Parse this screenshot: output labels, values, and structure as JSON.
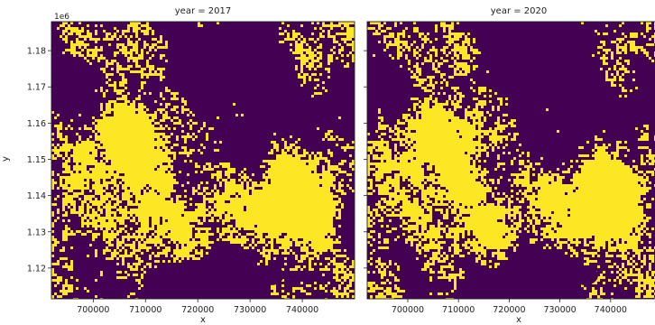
{
  "chart_data": [
    {
      "type": "heatmap",
      "title": "year = 2017",
      "xlabel": "x",
      "ylabel": "y",
      "y_offset_label": "1e6",
      "xlim": [
        692000,
        750000
      ],
      "ylim": [
        1.1115,
        1.188
      ],
      "x_ticks": [
        "700000",
        "710000",
        "720000",
        "730000",
        "740000"
      ],
      "y_ticks": [
        "1.12",
        "1.13",
        "1.14",
        "1.15",
        "1.16",
        "1.17",
        "1.18"
      ],
      "colors": {
        "low": "#440154",
        "high": "#fde725"
      },
      "grid": false
    },
    {
      "type": "heatmap",
      "title": "year = 2020",
      "xlabel": "x",
      "ylabel": "",
      "xlim": [
        692000,
        750000
      ],
      "ylim": [
        1.1115,
        1.188
      ],
      "x_ticks": [
        "700000",
        "710000",
        "720000",
        "730000",
        "740000"
      ],
      "y_ticks": [],
      "colors": {
        "low": "#440154",
        "high": "#fde725"
      },
      "grid": false
    }
  ]
}
